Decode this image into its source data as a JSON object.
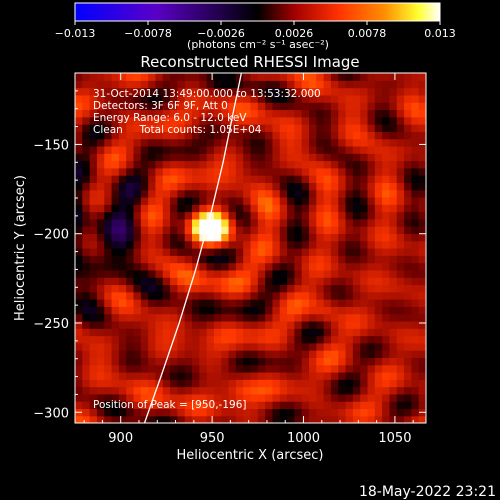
{
  "chart_data": {
    "type": "heatmap",
    "title": "Reconstructed RHESSI Image",
    "xlabel": "Heliocentric X (arcsec)",
    "ylabel": "Heliocentric Y (arcsec)",
    "xlim": [
      875,
      1067
    ],
    "ylim": [
      -306,
      -110
    ],
    "x_ticks": [
      900,
      950,
      1000,
      1050
    ],
    "y_ticks": [
      -300,
      -250,
      -200,
      -150
    ],
    "colorbar": {
      "min": -0.013,
      "max": 0.013,
      "tick_labels": [
        "-0.013",
        "-0.0078",
        "-0.0026",
        "0.0026",
        "0.0078",
        "0.013"
      ],
      "unit_label": "(photons cm⁻² s⁻¹ asec⁻²)",
      "colormap": [
        "#0000ff",
        "#6000c0",
        "#000000",
        "#a00000",
        "#ff3000",
        "#ff8000",
        "#ffff00",
        "#ffffff"
      ]
    },
    "annotations": [
      "31-Oct-2014 13:49:00.000 to 13:53:32.000",
      "Detectors: 3F 6F 9F, Att 0",
      "Energy Range: 6.0 - 12.0 keV",
      "Clean     Total counts: 1.05E+04",
      "Position of Peak = [950,-196]"
    ],
    "peak": {
      "x": 950,
      "y": -196,
      "value": 0.013
    },
    "background_level": 0.0035,
    "limb_curve": [
      [
        913,
        -306
      ],
      [
        922,
        -280
      ],
      [
        932,
        -250
      ],
      [
        941,
        -220
      ],
      [
        949,
        -190
      ],
      [
        956,
        -160
      ],
      [
        962,
        -130
      ],
      [
        966,
        -110
      ]
    ]
  },
  "footer_date": "18-May-2022 23:21"
}
